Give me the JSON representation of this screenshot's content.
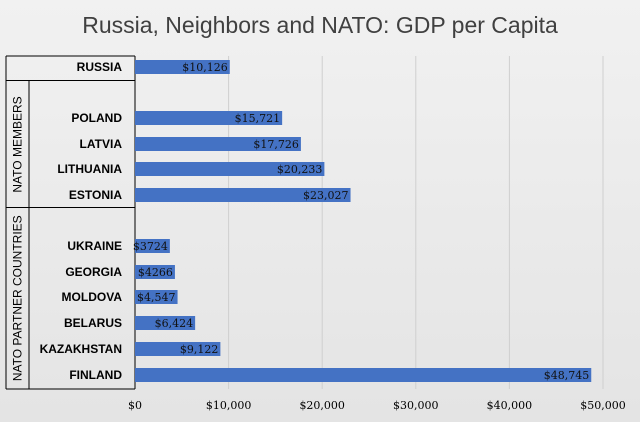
{
  "chart_data": {
    "type": "bar",
    "orientation": "horizontal",
    "title": "Russia, Neighbors and NATO: GDP per Capita",
    "xlabel": "",
    "ylabel": "",
    "xlim": [
      0,
      50000
    ],
    "x_ticks": [
      0,
      10000,
      20000,
      30000,
      40000,
      50000
    ],
    "x_tick_labels": [
      "$0",
      "$10,000",
      "$20,000",
      "$30,000",
      "$40,000",
      "$50,000"
    ],
    "grid": true,
    "legend": "none",
    "groups": [
      {
        "name": "",
        "categories": [
          "RUSSIA"
        ]
      },
      {
        "name": "NATO MEMBERS",
        "categories": [
          "POLAND",
          "LATVIA",
          "LITHUANIA",
          "ESTONIA"
        ]
      },
      {
        "name": "NATO PARTNER COUNTRIES",
        "categories": [
          "UKRAINE",
          "GEORGIA",
          "MOLDOVA",
          "BELARUS",
          "KAZAKHSTAN",
          "FINLAND"
        ]
      }
    ],
    "categories": [
      "RUSSIA",
      "POLAND",
      "LATVIA",
      "LITHUANIA",
      "ESTONIA",
      "UKRAINE",
      "GEORGIA",
      "MOLDOVA",
      "BELARUS",
      "KAZAKHSTAN",
      "FINLAND"
    ],
    "values": [
      10126,
      15721,
      17726,
      20233,
      23027,
      3724,
      4266,
      4547,
      6424,
      9122,
      48745
    ],
    "data_labels": [
      "$10,126",
      "$15,721",
      "$17,726",
      "$20,233",
      "$23,027",
      "$3724",
      "$4266",
      "$4,547",
      "$6,424",
      "$9,122",
      "$48,745"
    ],
    "bar_color": "#4472c4"
  }
}
